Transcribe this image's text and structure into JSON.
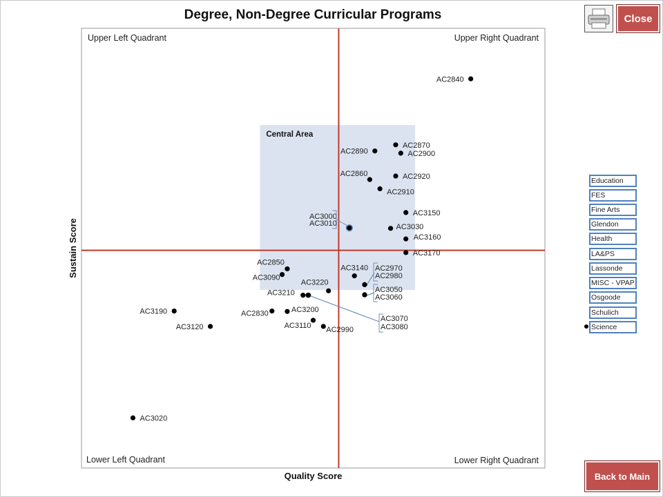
{
  "window": {
    "close_label": "Close",
    "back_label": "Back to Main"
  },
  "legend": [
    "Education",
    "FES",
    "Fine Arts",
    "Glendon",
    "Health",
    "LA&PS",
    "Lassonde",
    "MISC - VPAP",
    "Osgoode",
    "Schulich",
    "Science"
  ],
  "legend_selected": "Science",
  "chart_data": {
    "type": "scatter",
    "title": "Degree, Non-Degree Curricular Programs",
    "xlabel": "Quality Score",
    "ylabel": "Sustain Score",
    "quadrants": {
      "upper_left": "Upper Left Quadrant",
      "upper_right": "Upper Right Quadrant",
      "lower_left": "Lower Left Quadrant",
      "lower_right": "Lower Right Quadrant"
    },
    "central_area_label": "Central Area",
    "xlim": [
      0,
      100
    ],
    "ylim": [
      0,
      100
    ],
    "midlines": {
      "x": 55.5,
      "y": 49.5
    },
    "central_area": {
      "x": [
        38.5,
        72
      ],
      "y": [
        40.5,
        78
      ]
    },
    "colors": {
      "axis": "#c0392b",
      "central": "#dce3f0",
      "point": "#000000",
      "callout": "#6f8fb8"
    },
    "points": [
      {
        "label": "AC2840",
        "x": 84.0,
        "y": 88.5
      },
      {
        "label": "AC2870",
        "x": 67.8,
        "y": 73.5
      },
      {
        "label": "AC2890",
        "x": 63.3,
        "y": 72.1
      },
      {
        "label": "AC2900",
        "x": 68.9,
        "y": 71.6
      },
      {
        "label": "AC2860",
        "x": 62.2,
        "y": 65.6
      },
      {
        "label": "AC2920",
        "x": 67.8,
        "y": 66.4
      },
      {
        "label": "AC2910",
        "x": 64.4,
        "y": 63.5
      },
      {
        "label": "AC3150",
        "x": 70.0,
        "y": 58.1
      },
      {
        "label": "AC3000",
        "x": 57.8,
        "y": 54.6
      },
      {
        "label": "AC3010",
        "x": 57.8,
        "y": 54.6
      },
      {
        "label": "AC3030",
        "x": 66.7,
        "y": 54.5
      },
      {
        "label": "AC3160",
        "x": 70.0,
        "y": 52.1
      },
      {
        "label": "AC3170",
        "x": 70.0,
        "y": 49.0
      },
      {
        "label": "AC2850",
        "x": 44.4,
        "y": 45.3
      },
      {
        "label": "AC3090",
        "x": 43.3,
        "y": 44.0
      },
      {
        "label": "AC3140",
        "x": 58.9,
        "y": 43.7
      },
      {
        "label": "AC2970",
        "x": 61.1,
        "y": 41.7
      },
      {
        "label": "AC2980",
        "x": 61.1,
        "y": 41.7
      },
      {
        "label": "AC3220",
        "x": 53.3,
        "y": 40.3
      },
      {
        "label": "AC3210",
        "x": 47.8,
        "y": 39.3
      },
      {
        "label": "AC3050",
        "x": 61.1,
        "y": 39.4
      },
      {
        "label": "AC3060",
        "x": 61.1,
        "y": 39.4
      },
      {
        "label": "AC3070",
        "x": 48.9,
        "y": 39.3
      },
      {
        "label": "AC3080",
        "x": 48.9,
        "y": 39.3
      },
      {
        "label": "AC3190",
        "x": 20.0,
        "y": 35.7
      },
      {
        "label": "AC2830",
        "x": 41.1,
        "y": 35.7
      },
      {
        "label": "AC3200",
        "x": 44.4,
        "y": 35.6
      },
      {
        "label": "AC3120",
        "x": 27.8,
        "y": 32.2
      },
      {
        "label": "AC3110",
        "x": 50.0,
        "y": 33.6
      },
      {
        "label": "AC2990",
        "x": 52.2,
        "y": 32.2
      },
      {
        "label": "AC3020",
        "x": 11.1,
        "y": 11.4
      }
    ]
  }
}
